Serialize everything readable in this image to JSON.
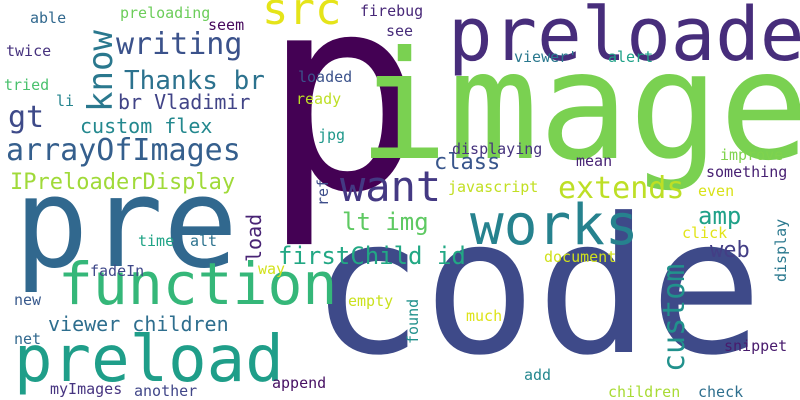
{
  "words": [
    {
      "text": "code",
      "color": "#3e4a89"
    },
    {
      "text": "p",
      "color": "#440154"
    },
    {
      "text": "image",
      "color": "#7ad151"
    },
    {
      "text": "pre",
      "color": "#31688e"
    },
    {
      "text": "preloader",
      "color": "#472d7b"
    },
    {
      "text": "function",
      "color": "#35b779"
    },
    {
      "text": "works",
      "color": "#26828e"
    },
    {
      "text": "preload",
      "color": "#1f9e89"
    },
    {
      "text": "want",
      "color": "#443983"
    },
    {
      "text": "src",
      "color": "#e5e419"
    },
    {
      "text": "know",
      "color": "#2a788e"
    },
    {
      "text": "writing",
      "color": "#3b528b"
    },
    {
      "text": "arrayOfImages",
      "color": "#355f8d"
    },
    {
      "text": "extends",
      "color": "#bddf26"
    },
    {
      "text": "custom",
      "color": "#21918c"
    },
    {
      "text": "amp",
      "color": "#1fa188"
    },
    {
      "text": "Thanks br",
      "color": "#2c728e"
    },
    {
      "text": "custom flex",
      "color": "#23888e"
    },
    {
      "text": "gt",
      "color": "#3e4a89"
    },
    {
      "text": "br Vladimir",
      "color": "#414487"
    },
    {
      "text": "IPreloaderDisplay",
      "color": "#a0da39"
    },
    {
      "text": "firstChild id",
      "color": "#22a884"
    },
    {
      "text": "lt img",
      "color": "#5ec962"
    },
    {
      "text": "viewer children",
      "color": "#2e6e8e"
    },
    {
      "text": "class",
      "color": "#39568c"
    },
    {
      "text": "load",
      "color": "#482374"
    },
    {
      "text": "web",
      "color": "#433e85"
    },
    {
      "text": "displaying",
      "color": "#46337e"
    },
    {
      "text": "preloading",
      "color": "#6ccd5a"
    },
    {
      "text": "firebug",
      "color": "#482878"
    },
    {
      "text": "seem",
      "color": "#46085c"
    },
    {
      "text": "able",
      "color": "#31688e"
    },
    {
      "text": "twice",
      "color": "#46327e"
    },
    {
      "text": "tried",
      "color": "#4ac16d"
    },
    {
      "text": "li",
      "color": "#25848e"
    },
    {
      "text": "see",
      "color": "#472c7a"
    },
    {
      "text": "loaded",
      "color": "#3b528b"
    },
    {
      "text": "ready",
      "color": "#bddf26"
    },
    {
      "text": "viewer'",
      "color": "#2a788e"
    },
    {
      "text": "alert",
      "color": "#1fa188"
    },
    {
      "text": "jpg",
      "color": "#1f988b"
    },
    {
      "text": "mean",
      "color": "#482475"
    },
    {
      "text": "improve",
      "color": "#7fd34e"
    },
    {
      "text": "something",
      "color": "#482173"
    },
    {
      "text": "even",
      "color": "#d8e219"
    },
    {
      "text": "javascript",
      "color": "#c2df23"
    },
    {
      "text": "ref",
      "color": "#3d4d8a"
    },
    {
      "text": "time",
      "color": "#20a486"
    },
    {
      "text": "alt",
      "color": "#2c728e"
    },
    {
      "text": "click",
      "color": "#e2e418"
    },
    {
      "text": "display",
      "color": "#2a788e"
    },
    {
      "text": "way",
      "color": "#d2e21b"
    },
    {
      "text": "fadeIn",
      "color": "#3f4889"
    },
    {
      "text": "document",
      "color": "#d0e11c"
    },
    {
      "text": "new",
      "color": "#38598c"
    },
    {
      "text": "empty",
      "color": "#cae11f"
    },
    {
      "text": "net",
      "color": "#31688e"
    },
    {
      "text": "found",
      "color": "#21918c"
    },
    {
      "text": "much",
      "color": "#dde318"
    },
    {
      "text": "snippet",
      "color": "#481b6d"
    },
    {
      "text": "myImages",
      "color": "#463480"
    },
    {
      "text": "another",
      "color": "#404688"
    },
    {
      "text": "append",
      "color": "#471063"
    },
    {
      "text": "add",
      "color": "#24878e"
    },
    {
      "text": "children",
      "color": "#a8db34"
    },
    {
      "text": "check",
      "color": "#2e6f8e"
    }
  ]
}
